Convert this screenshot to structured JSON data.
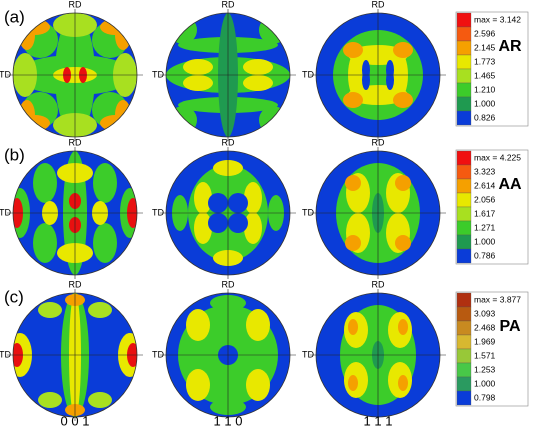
{
  "labels": {
    "rd": "RD",
    "td": "TD"
  },
  "columns": [
    "0 0 1",
    "1 1 0",
    "1 1 1"
  ],
  "rows": [
    {
      "label": "(a)",
      "sample": "AR",
      "legend_max": "max = 3.142",
      "levels": [
        "2.596",
        "2.145",
        "1.773",
        "1.465",
        "1.210",
        "1.000",
        "0.826"
      ]
    },
    {
      "label": "(b)",
      "sample": "AA",
      "legend_max": "max = 4.225",
      "levels": [
        "3.323",
        "2.614",
        "2.056",
        "1.617",
        "1.271",
        "1.000",
        "0.786"
      ]
    },
    {
      "label": "(c)",
      "sample": "PA",
      "legend_max": "max = 3.877",
      "levels": [
        "3.093",
        "2.468",
        "1.969",
        "1.571",
        "1.253",
        "1.000",
        "0.798"
      ]
    }
  ]
}
